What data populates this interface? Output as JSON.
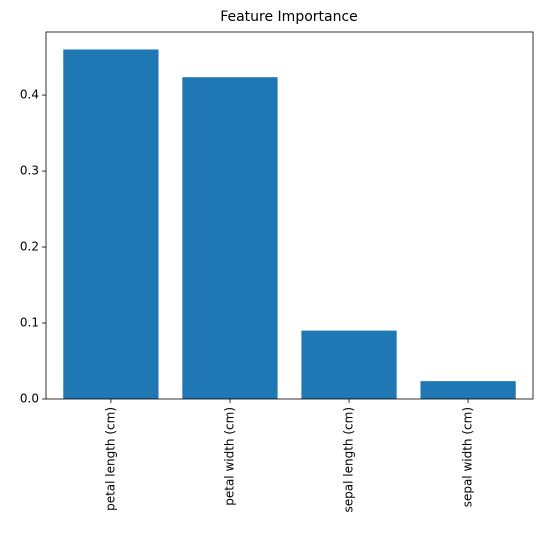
{
  "chart_data": {
    "type": "bar",
    "title": "Feature Importance",
    "categories": [
      "petal length (cm)",
      "petal width (cm)",
      "sepal length (cm)",
      "sepal width (cm)"
    ],
    "values": [
      0.46,
      0.4235,
      0.09,
      0.0235
    ],
    "color": "#1f77b4",
    "ylim": [
      0,
      0.483
    ],
    "yticks": [
      {
        "value": 0,
        "label": "0.0"
      },
      0.1,
      0.2,
      0.3,
      0.4
    ]
  }
}
